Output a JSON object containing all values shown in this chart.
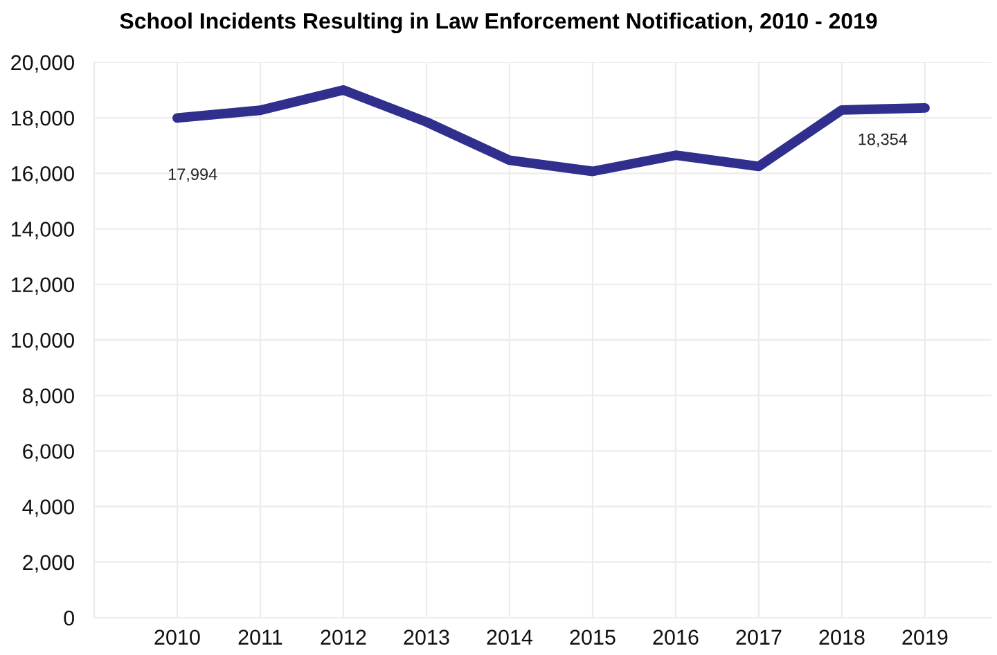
{
  "chart_data": {
    "type": "line",
    "title": "School Incidents Resulting in Law Enforcement Notification, 2010 - 2019",
    "categories": [
      "2010",
      "2011",
      "2012",
      "2013",
      "2014",
      "2015",
      "2016",
      "2017",
      "2018",
      "2019"
    ],
    "series": [
      {
        "color": "#302f8e",
        "values": [
          17994,
          18270,
          19000,
          17850,
          16470,
          16070,
          16650,
          16250,
          18280,
          18354
        ],
        "value_labels": [
          "17,994",
          null,
          null,
          null,
          null,
          null,
          null,
          null,
          null,
          "18,354"
        ]
      }
    ],
    "ylim": [
      0,
      20000
    ],
    "yticks": [
      {
        "value": 0,
        "label": "0"
      },
      {
        "value": 2000,
        "label": "2,000"
      },
      {
        "value": 4000,
        "label": "4,000"
      },
      {
        "value": 6000,
        "label": "6,000"
      },
      {
        "value": 8000,
        "label": "8,000"
      },
      {
        "value": 10000,
        "label": "10,000"
      },
      {
        "value": 12000,
        "label": "12,000"
      },
      {
        "value": 14000,
        "label": "14,000"
      },
      {
        "value": 16000,
        "label": "16,000"
      },
      {
        "value": 18000,
        "label": "18,000"
      },
      {
        "value": 20000,
        "label": "20,000"
      }
    ],
    "grid": true,
    "marker": "none",
    "line_style": "solid",
    "legend": false
  }
}
